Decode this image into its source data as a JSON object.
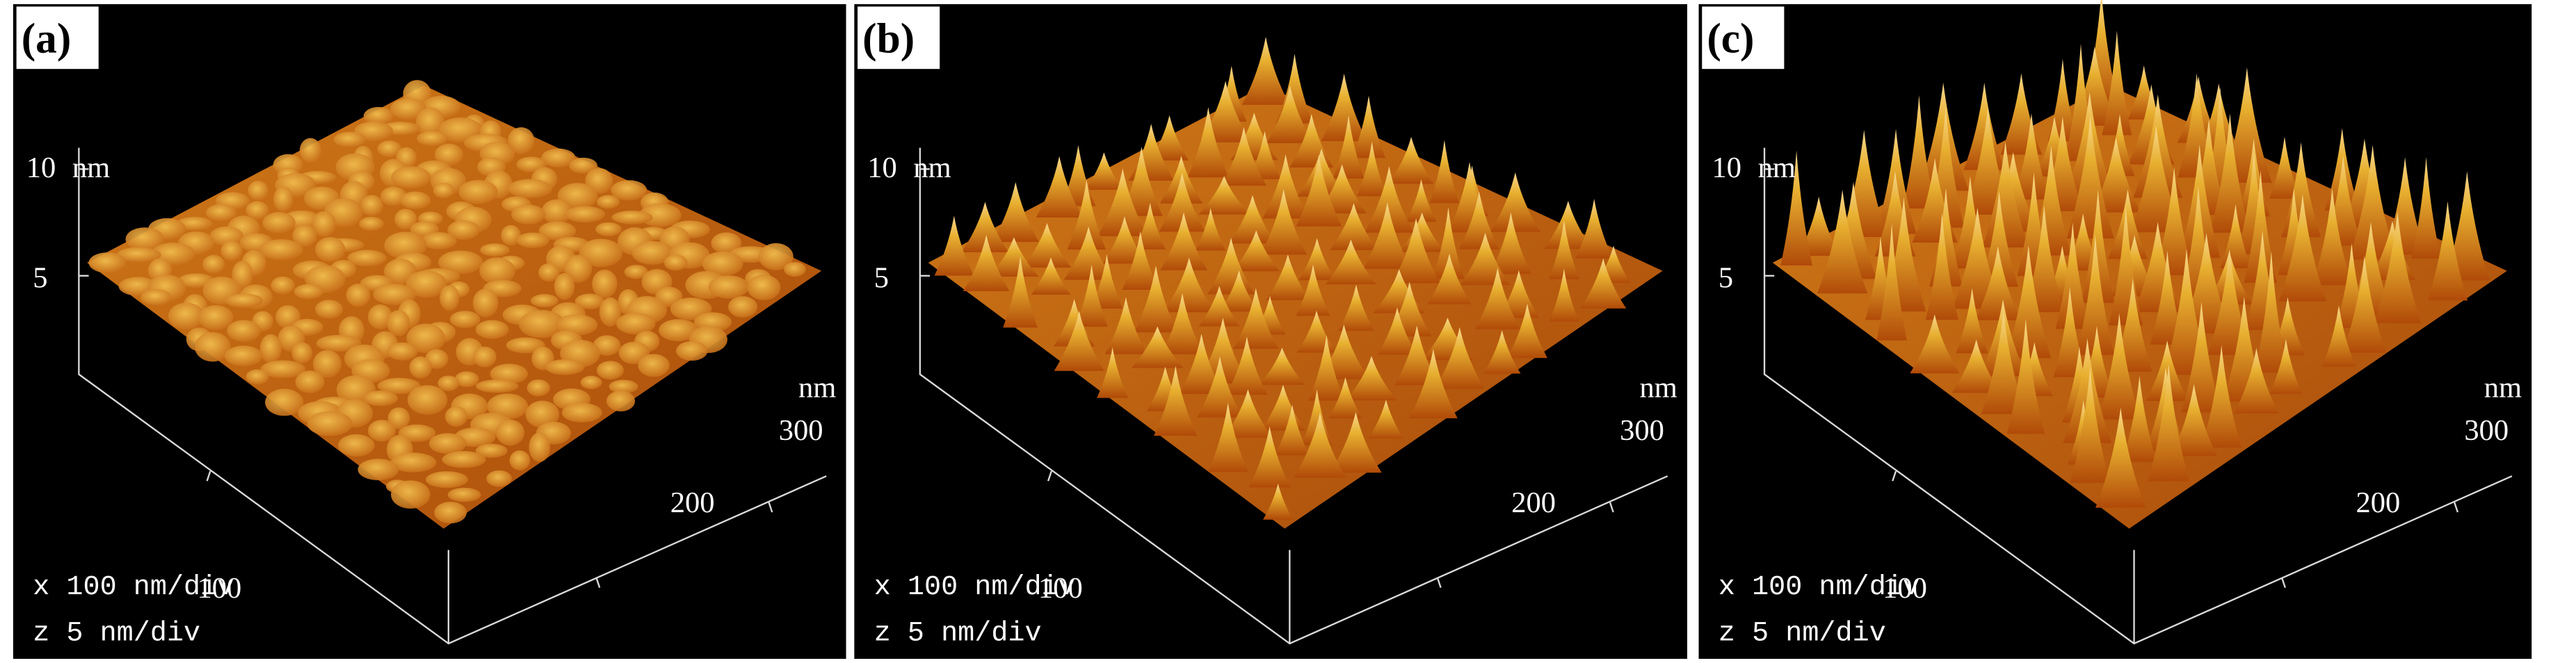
{
  "panels": [
    {
      "label": "(a)",
      "z_ticks": [
        10,
        5
      ],
      "z_unit": "nm",
      "xy_unit": "nm",
      "xy_ticks": [
        300,
        200,
        100
      ],
      "scale_x": "x 100 nm/div",
      "scale_z": "z 5 nm/div"
    },
    {
      "label": "(b)",
      "z_ticks": [
        10,
        5
      ],
      "z_unit": "nm",
      "xy_unit": "nm",
      "xy_ticks": [
        300,
        200,
        100
      ],
      "scale_x": "x 100 nm/div",
      "scale_z": "z 5 nm/div"
    },
    {
      "label": "(c)",
      "z_ticks": [
        10,
        5
      ],
      "z_unit": "nm",
      "xy_unit": "nm",
      "xy_ticks": [
        300,
        200,
        100
      ],
      "scale_x": "x 100 nm/div",
      "scale_z": "z 5 nm/div"
    }
  ]
}
